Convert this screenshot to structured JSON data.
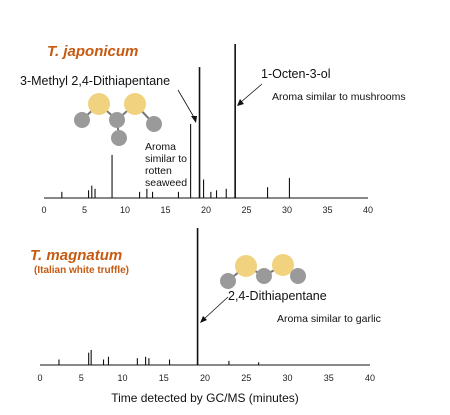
{
  "figure": {
    "xlabel": "Time detected by GC/MS (minutes)"
  },
  "chart_data": [
    {
      "type": "line",
      "title": "T. japonicum",
      "subtitle": "",
      "xlabel": "Time detected by GC/MS (minutes)",
      "ylabel": "",
      "xlim": [
        0,
        40
      ],
      "xticks": [
        0,
        5,
        10,
        15,
        20,
        25,
        30,
        35,
        40
      ],
      "grid": false,
      "series": [
        {
          "peaks": [
            {
              "x": 2.2,
              "y": 0.04
            },
            {
              "x": 5.5,
              "y": 0.05
            },
            {
              "x": 5.9,
              "y": 0.08
            },
            {
              "x": 6.3,
              "y": 0.06
            },
            {
              "x": 8.4,
              "y": 0.28
            },
            {
              "x": 11.8,
              "y": 0.04
            },
            {
              "x": 12.7,
              "y": 0.06
            },
            {
              "x": 13.4,
              "y": 0.04
            },
            {
              "x": 16.6,
              "y": 0.04
            },
            {
              "x": 18.1,
              "y": 0.48
            },
            {
              "x": 19.2,
              "y": 0.85
            },
            {
              "x": 19.7,
              "y": 0.12
            },
            {
              "x": 20.6,
              "y": 0.04
            },
            {
              "x": 21.3,
              "y": 0.05
            },
            {
              "x": 22.5,
              "y": 0.06
            },
            {
              "x": 23.6,
              "y": 1.0
            },
            {
              "x": 27.6,
              "y": 0.07
            },
            {
              "x": 30.3,
              "y": 0.13
            }
          ]
        }
      ],
      "annotations": [
        {
          "text": "3-Methyl 2,4-Dithiapentane",
          "x": 19.2
        },
        {
          "text": "1-Octen-3-ol",
          "x": 23.6
        },
        {
          "text": "Aroma similar to mushrooms"
        },
        {
          "text": "Aroma\nsimilar to\nrotten\nseaweed"
        }
      ]
    },
    {
      "type": "line",
      "title": "T. magnatum",
      "subtitle": "(Italian white truffle)",
      "xlabel": "Time detected by GC/MS (minutes)",
      "ylabel": "",
      "xlim": [
        0,
        40
      ],
      "xticks": [
        0,
        5,
        10,
        15,
        20,
        25,
        30,
        35,
        40
      ],
      "grid": false,
      "series": [
        {
          "peaks": [
            {
              "x": 2.3,
              "y": 0.04
            },
            {
              "x": 5.9,
              "y": 0.09
            },
            {
              "x": 6.2,
              "y": 0.11
            },
            {
              "x": 7.7,
              "y": 0.04
            },
            {
              "x": 8.3,
              "y": 0.06
            },
            {
              "x": 11.8,
              "y": 0.05
            },
            {
              "x": 12.8,
              "y": 0.06
            },
            {
              "x": 13.2,
              "y": 0.05
            },
            {
              "x": 15.7,
              "y": 0.04
            },
            {
              "x": 19.1,
              "y": 1.0
            },
            {
              "x": 22.9,
              "y": 0.03
            },
            {
              "x": 26.5,
              "y": 0.02
            }
          ]
        }
      ],
      "annotations": [
        {
          "text": "2,4-Dithiapentane",
          "x": 19.1
        },
        {
          "text": "Aroma similar to garlic"
        }
      ]
    }
  ],
  "molecule_icons": [
    {
      "name": "3-methyl-2,4-dithiapentane-molecule-icon",
      "atoms": [
        "sulfur",
        "sulfur",
        "carbon",
        "carbon",
        "carbon",
        "carbon"
      ]
    },
    {
      "name": "2,4-dithiapentane-molecule-icon",
      "atoms": [
        "sulfur",
        "sulfur",
        "carbon",
        "carbon",
        "carbon"
      ]
    }
  ],
  "colors": {
    "title": "#c65a11",
    "trace": "#111111",
    "sulfur_atom": "#f1d27e",
    "carbon_atom": "#9a9a9a"
  }
}
